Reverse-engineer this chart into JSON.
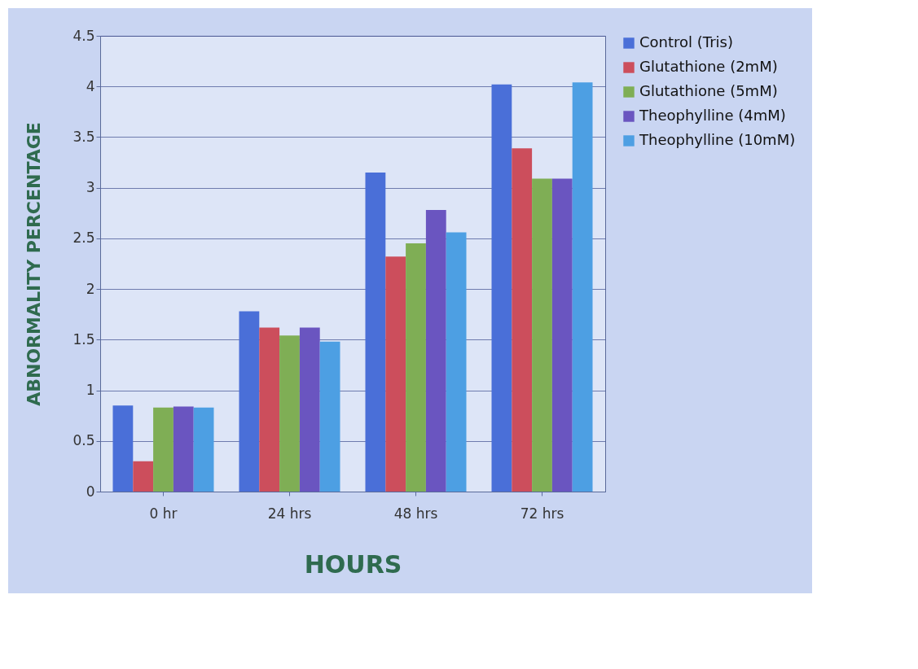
{
  "chart_data": {
    "type": "bar",
    "xlabel": "HOURS",
    "ylabel": "ABNORMALITY PERCENTAGE",
    "categories": [
      "0 hr",
      "24 hrs",
      "48 hrs",
      "72 hrs"
    ],
    "series": [
      {
        "name": "Control (Tris)",
        "color": "#4a6fd8",
        "values": [
          0.85,
          1.78,
          3.15,
          4.02
        ]
      },
      {
        "name": "Glutathione (2mM)",
        "color": "#cc4e5c",
        "values": [
          0.3,
          1.62,
          2.32,
          3.39
        ]
      },
      {
        "name": "Glutathione (5mM)",
        "color": "#7fae55",
        "values": [
          0.83,
          1.54,
          2.45,
          3.09
        ]
      },
      {
        "name": "Theophylline (4mM)",
        "color": "#6a55c0",
        "values": [
          0.84,
          1.62,
          2.78,
          3.09
        ]
      },
      {
        "name": "Theophylline (10mM)",
        "color": "#4d9fe3",
        "values": [
          0.83,
          1.48,
          2.56,
          4.04
        ]
      }
    ],
    "ylim": [
      0,
      4.5
    ],
    "yticks": [
      0,
      0.5,
      1,
      1.5,
      2,
      2.5,
      3,
      3.5,
      4,
      4.5
    ],
    "grid": "y",
    "legend": "right"
  }
}
